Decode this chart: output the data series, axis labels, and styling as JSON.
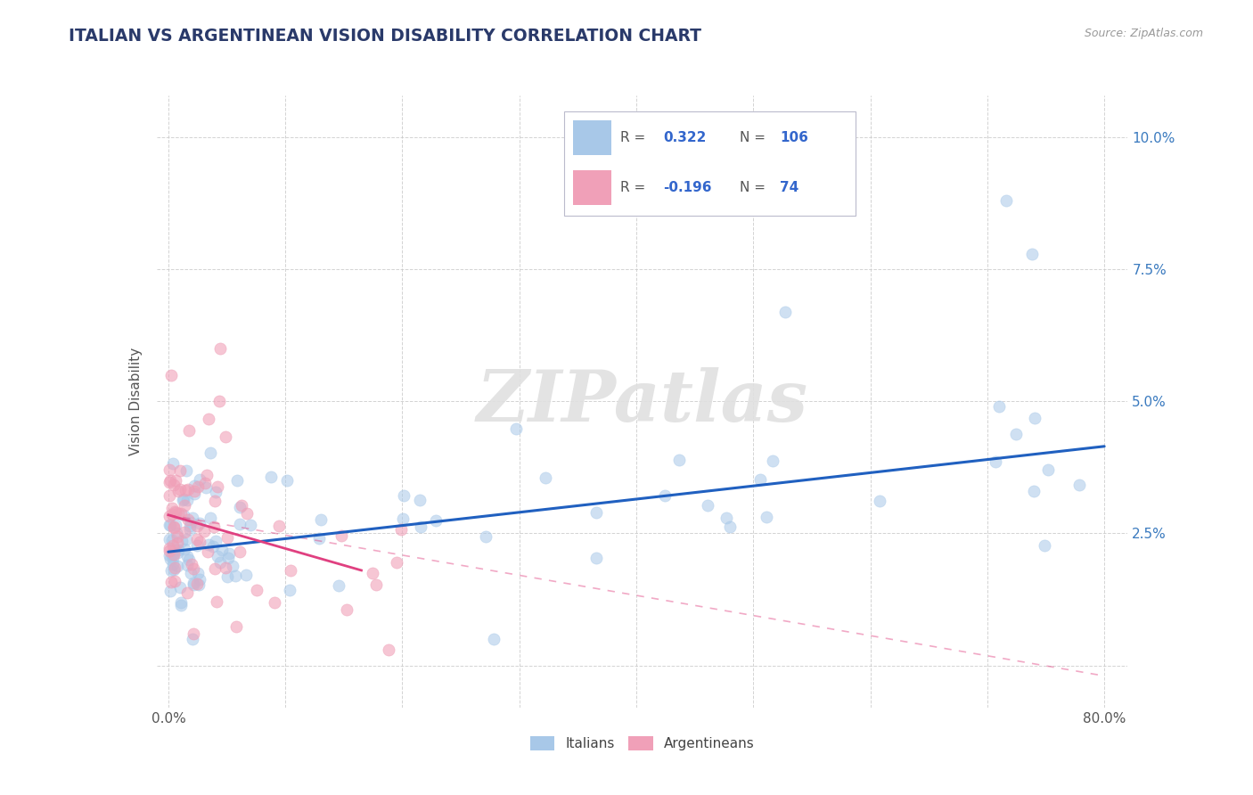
{
  "title": "ITALIAN VS ARGENTINEAN VISION DISABILITY CORRELATION CHART",
  "source": "Source: ZipAtlas.com",
  "ylabel": "Vision Disability",
  "italian_color": "#A8C8E8",
  "argentinean_color": "#F0A0B8",
  "italian_line_color": "#2060C0",
  "argentinean_line_color": "#E04080",
  "background_color": "#FFFFFF",
  "grid_color": "#C8C8C8",
  "title_color": "#2A3A6A",
  "watermark_color": "#DDDDDD",
  "watermark": "ZIPatlas",
  "xlim_min": -0.01,
  "xlim_max": 0.82,
  "ylim_min": -0.008,
  "ylim_max": 0.108,
  "ytick_right_labels": [
    "",
    "2.5%",
    "5.0%",
    "7.5%",
    "10.0%"
  ],
  "ytick_positions": [
    0.0,
    0.025,
    0.05,
    0.075,
    0.1
  ],
  "xtick_positions": [
    0.0,
    0.1,
    0.2,
    0.3,
    0.4,
    0.5,
    0.6,
    0.7,
    0.8
  ],
  "xtick_labels": [
    "0.0%",
    "",
    "",
    "",
    "",
    "",
    "",
    "",
    "80.0%"
  ],
  "legend_r1": "0.322",
  "legend_n1": "106",
  "legend_r2": "-0.196",
  "legend_n2": "74",
  "legend_text_color": "#3366CC",
  "legend_label_color": "#555555"
}
